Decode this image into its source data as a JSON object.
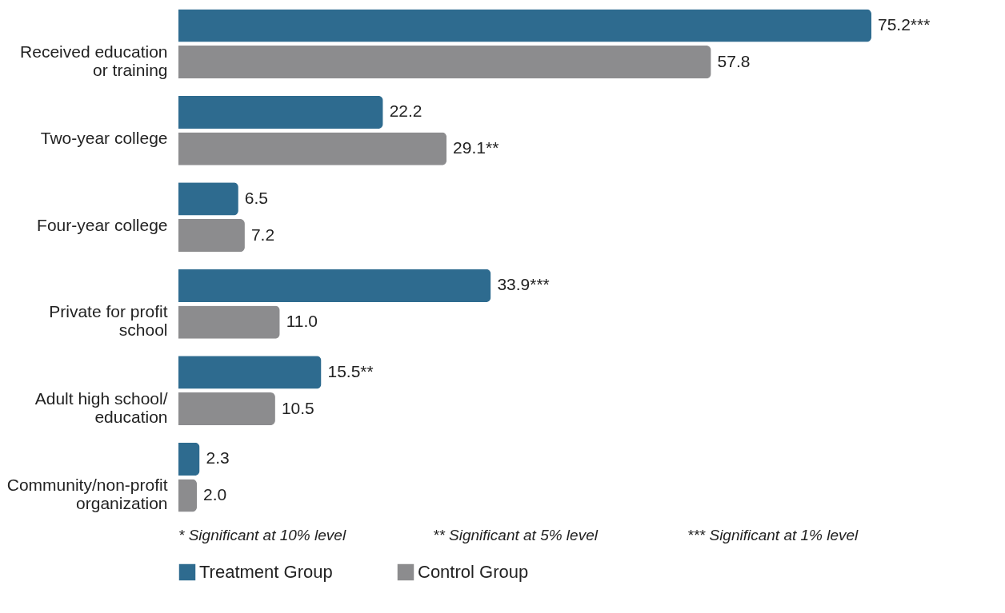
{
  "chart_data": {
    "type": "bar",
    "orientation": "horizontal",
    "categories": [
      "Received education\nor training",
      "Two-year college",
      "Four-year college",
      "Private for profit\nschool",
      "Adult high school/\neducation",
      "Community/non-profit\norganization"
    ],
    "series": [
      {
        "name": "Treatment Group",
        "color": "#2e6b8f",
        "values": [
          75.2,
          22.2,
          6.5,
          33.9,
          15.5,
          2.3
        ],
        "value_labels": [
          "75.2***",
          "22.2",
          "6.5",
          "33.9***",
          "15.5**",
          "2.3"
        ]
      },
      {
        "name": "Control Group",
        "color": "#8c8c8e",
        "values": [
          57.8,
          29.1,
          7.2,
          11.0,
          10.5,
          2.0
        ],
        "value_labels": [
          "57.8",
          "29.1**",
          "7.2",
          "11.0",
          "10.5",
          "2.0"
        ]
      }
    ],
    "legend": "bottom",
    "grid": false,
    "annotations": [
      "* Significant at 10% level",
      "** Significant at 5% level",
      "*** Significant at 1% level"
    ]
  }
}
